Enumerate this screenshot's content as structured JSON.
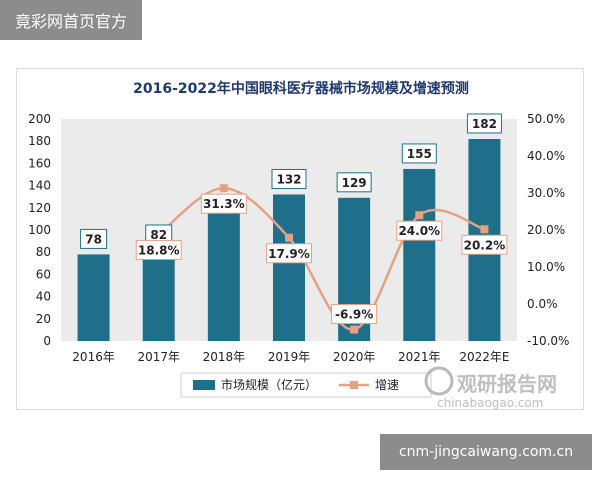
{
  "header_badge": "竟彩网首页官方",
  "footer_badge": "cnm-jingcaiwang.com.cn",
  "watermark": {
    "brand": "观研报告网",
    "site": "chinabaogao.com"
  },
  "colors": {
    "bar": "#1f6f8b",
    "line": "#e5a283",
    "title": "#1f3a6d",
    "plot_bg": "#ebebeb"
  },
  "chart_data": {
    "type": "bar",
    "title": "2016-2022年中国眼科医疗器械市场规模及增速预测",
    "categories": [
      "2016年",
      "2017年",
      "2018年",
      "2019年",
      "2020年",
      "2021年",
      "2022年E"
    ],
    "series": [
      {
        "name": "市场规模（亿元）",
        "type": "bar",
        "axis": "left",
        "values": [
          78,
          82,
          116,
          132,
          129,
          155,
          182
        ],
        "labels": [
          "78",
          "82",
          "",
          "132",
          "129",
          "155",
          "182"
        ]
      },
      {
        "name": "增速",
        "type": "line",
        "axis": "right",
        "values": [
          null,
          18.8,
          31.3,
          17.9,
          -6.9,
          24.0,
          20.2
        ],
        "labels": [
          "",
          "18.8%",
          "31.3%",
          "17.9%",
          "-6.9%",
          "24.0%",
          "20.2%"
        ]
      }
    ],
    "y_left": {
      "min": 0,
      "max": 200,
      "step": 20,
      "ticks": [
        "0",
        "20",
        "40",
        "60",
        "80",
        "100",
        "120",
        "140",
        "160",
        "180",
        "200"
      ]
    },
    "y_right": {
      "min": -10,
      "max": 50,
      "step": 10,
      "ticks": [
        "-10.0%",
        "0.0%",
        "10.0%",
        "20.0%",
        "30.0%",
        "40.0%",
        "50.0%"
      ]
    },
    "grid": false,
    "legend": "bottom"
  }
}
